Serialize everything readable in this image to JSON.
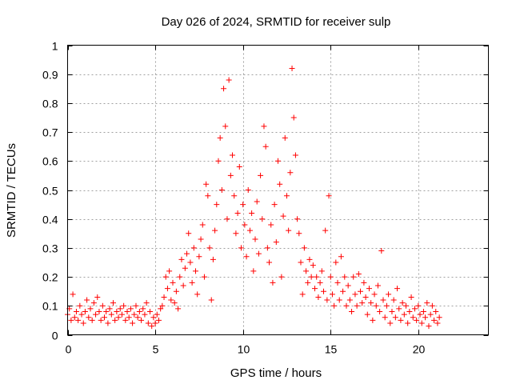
{
  "chart_data": {
    "type": "scatter",
    "title": "Day 026 of 2024, SRMTID for receiver sulp",
    "xlabel": "GPS time / hours",
    "ylabel": "SRMTID / TECUs",
    "xlim": [
      0,
      24
    ],
    "ylim": [
      0,
      1
    ],
    "xticks": [
      0,
      5,
      10,
      15,
      20
    ],
    "xtick_labels": [
      "0",
      "5",
      "10",
      "15",
      "20"
    ],
    "yticks": [
      0,
      0.1,
      0.2,
      0.3,
      0.4,
      0.5,
      0.6,
      0.7,
      0.8,
      0.9,
      1
    ],
    "ytick_labels": [
      "0",
      "0.1",
      "0.2",
      "0.3",
      "0.4",
      "0.5",
      "0.6",
      "0.7",
      "0.8",
      "0.9",
      "1"
    ],
    "grid": true,
    "marker": "+",
    "color": "#ff0000",
    "series": [
      {
        "name": "SRMTID",
        "points": [
          [
            0.0,
            0.07
          ],
          [
            0.1,
            0.09
          ],
          [
            0.2,
            0.05
          ],
          [
            0.3,
            0.14
          ],
          [
            0.4,
            0.06
          ],
          [
            0.5,
            0.08
          ],
          [
            0.6,
            0.05
          ],
          [
            0.7,
            0.1
          ],
          [
            0.8,
            0.07
          ],
          [
            0.9,
            0.04
          ],
          [
            1.0,
            0.08
          ],
          [
            1.1,
            0.12
          ],
          [
            1.2,
            0.06
          ],
          [
            1.3,
            0.09
          ],
          [
            1.4,
            0.05
          ],
          [
            1.5,
            0.11
          ],
          [
            1.6,
            0.07
          ],
          [
            1.7,
            0.13
          ],
          [
            1.8,
            0.08
          ],
          [
            1.9,
            0.05
          ],
          [
            2.0,
            0.1
          ],
          [
            2.1,
            0.06
          ],
          [
            2.2,
            0.08
          ],
          [
            2.3,
            0.04
          ],
          [
            2.4,
            0.09
          ],
          [
            2.5,
            0.07
          ],
          [
            2.6,
            0.11
          ],
          [
            2.7,
            0.05
          ],
          [
            2.8,
            0.08
          ],
          [
            2.9,
            0.06
          ],
          [
            3.0,
            0.09
          ],
          [
            3.1,
            0.07
          ],
          [
            3.2,
            0.1
          ],
          [
            3.3,
            0.05
          ],
          [
            3.4,
            0.08
          ],
          [
            3.5,
            0.06
          ],
          [
            3.6,
            0.09
          ],
          [
            3.7,
            0.04
          ],
          [
            3.8,
            0.07
          ],
          [
            3.9,
            0.1
          ],
          [
            4.0,
            0.06
          ],
          [
            4.1,
            0.08
          ],
          [
            4.2,
            0.05
          ],
          [
            4.3,
            0.09
          ],
          [
            4.4,
            0.07
          ],
          [
            4.5,
            0.11
          ],
          [
            4.6,
            0.04
          ],
          [
            4.7,
            0.08
          ],
          [
            4.8,
            0.03
          ],
          [
            4.9,
            0.06
          ],
          [
            5.0,
            0.04
          ],
          [
            5.1,
            0.07
          ],
          [
            5.2,
            0.05
          ],
          [
            5.3,
            0.09
          ],
          [
            5.4,
            0.1
          ],
          [
            5.5,
            0.13
          ],
          [
            5.6,
            0.2
          ],
          [
            5.7,
            0.16
          ],
          [
            5.8,
            0.22
          ],
          [
            5.9,
            0.12
          ],
          [
            6.0,
            0.18
          ],
          [
            6.1,
            0.11
          ],
          [
            6.2,
            0.15
          ],
          [
            6.3,
            0.09
          ],
          [
            6.4,
            0.2
          ],
          [
            6.5,
            0.26
          ],
          [
            6.6,
            0.17
          ],
          [
            6.7,
            0.23
          ],
          [
            6.8,
            0.28
          ],
          [
            6.9,
            0.35
          ],
          [
            7.0,
            0.25
          ],
          [
            7.1,
            0.18
          ],
          [
            7.2,
            0.3
          ],
          [
            7.3,
            0.22
          ],
          [
            7.4,
            0.14
          ],
          [
            7.5,
            0.27
          ],
          [
            7.6,
            0.33
          ],
          [
            7.7,
            0.38
          ],
          [
            7.8,
            0.2
          ],
          [
            7.9,
            0.52
          ],
          [
            8.0,
            0.48
          ],
          [
            8.1,
            0.3
          ],
          [
            8.2,
            0.12
          ],
          [
            8.3,
            0.26
          ],
          [
            8.4,
            0.36
          ],
          [
            8.5,
            0.45
          ],
          [
            8.6,
            0.6
          ],
          [
            8.7,
            0.68
          ],
          [
            8.8,
            0.5
          ],
          [
            8.9,
            0.85
          ],
          [
            9.0,
            0.72
          ],
          [
            9.1,
            0.4
          ],
          [
            9.2,
            0.88
          ],
          [
            9.3,
            0.55
          ],
          [
            9.4,
            0.62
          ],
          [
            9.5,
            0.48
          ],
          [
            9.6,
            0.35
          ],
          [
            9.7,
            0.42
          ],
          [
            9.8,
            0.58
          ],
          [
            9.9,
            0.3
          ],
          [
            10.0,
            0.45
          ],
          [
            10.1,
            0.38
          ],
          [
            10.2,
            0.27
          ],
          [
            10.3,
            0.5
          ],
          [
            10.4,
            0.36
          ],
          [
            10.5,
            0.42
          ],
          [
            10.6,
            0.22
          ],
          [
            10.7,
            0.33
          ],
          [
            10.8,
            0.46
          ],
          [
            10.9,
            0.28
          ],
          [
            11.0,
            0.55
          ],
          [
            11.1,
            0.4
          ],
          [
            11.2,
            0.72
          ],
          [
            11.3,
            0.65
          ],
          [
            11.4,
            0.3
          ],
          [
            11.5,
            0.25
          ],
          [
            11.6,
            0.38
          ],
          [
            11.7,
            0.18
          ],
          [
            11.8,
            0.45
          ],
          [
            11.9,
            0.32
          ],
          [
            12.0,
            0.6
          ],
          [
            12.1,
            0.52
          ],
          [
            12.2,
            0.2
          ],
          [
            12.3,
            0.41
          ],
          [
            12.4,
            0.68
          ],
          [
            12.5,
            0.48
          ],
          [
            12.6,
            0.36
          ],
          [
            12.7,
            0.56
          ],
          [
            12.8,
            0.92
          ],
          [
            12.9,
            0.75
          ],
          [
            13.0,
            0.62
          ],
          [
            13.1,
            0.4
          ],
          [
            13.2,
            0.35
          ],
          [
            13.3,
            0.25
          ],
          [
            13.4,
            0.14
          ],
          [
            13.5,
            0.3
          ],
          [
            13.6,
            0.22
          ],
          [
            13.7,
            0.18
          ],
          [
            13.8,
            0.26
          ],
          [
            13.9,
            0.2
          ],
          [
            14.0,
            0.24
          ],
          [
            14.1,
            0.16
          ],
          [
            14.2,
            0.2
          ],
          [
            14.3,
            0.13
          ],
          [
            14.4,
            0.18
          ],
          [
            14.5,
            0.22
          ],
          [
            14.6,
            0.15
          ],
          [
            14.7,
            0.36
          ],
          [
            14.8,
            0.12
          ],
          [
            14.9,
            0.48
          ],
          [
            15.0,
            0.2
          ],
          [
            15.1,
            0.14
          ],
          [
            15.2,
            0.1
          ],
          [
            15.3,
            0.25
          ],
          [
            15.4,
            0.18
          ],
          [
            15.5,
            0.12
          ],
          [
            15.6,
            0.27
          ],
          [
            15.7,
            0.15
          ],
          [
            15.8,
            0.2
          ],
          [
            15.9,
            0.1
          ],
          [
            16.0,
            0.17
          ],
          [
            16.1,
            0.12
          ],
          [
            16.2,
            0.08
          ],
          [
            16.3,
            0.2
          ],
          [
            16.4,
            0.14
          ],
          [
            16.5,
            0.1
          ],
          [
            16.6,
            0.21
          ],
          [
            16.7,
            0.15
          ],
          [
            16.8,
            0.11
          ],
          [
            16.9,
            0.18
          ],
          [
            17.0,
            0.13
          ],
          [
            17.1,
            0.07
          ],
          [
            17.2,
            0.16
          ],
          [
            17.3,
            0.11
          ],
          [
            17.4,
            0.05
          ],
          [
            17.5,
            0.14
          ],
          [
            17.6,
            0.1
          ],
          [
            17.7,
            0.17
          ],
          [
            17.8,
            0.08
          ],
          [
            17.9,
            0.29
          ],
          [
            18.0,
            0.12
          ],
          [
            18.1,
            0.06
          ],
          [
            18.2,
            0.1
          ],
          [
            18.3,
            0.14
          ],
          [
            18.4,
            0.04
          ],
          [
            18.5,
            0.08
          ],
          [
            18.6,
            0.12
          ],
          [
            18.7,
            0.06
          ],
          [
            18.8,
            0.16
          ],
          [
            18.9,
            0.09
          ],
          [
            19.0,
            0.05
          ],
          [
            19.1,
            0.11
          ],
          [
            19.2,
            0.07
          ],
          [
            19.3,
            0.1
          ],
          [
            19.4,
            0.04
          ],
          [
            19.5,
            0.08
          ],
          [
            19.6,
            0.13
          ],
          [
            19.7,
            0.06
          ],
          [
            19.8,
            0.09
          ],
          [
            19.9,
            0.05
          ],
          [
            20.0,
            0.1
          ],
          [
            20.1,
            0.07
          ],
          [
            20.2,
            0.04
          ],
          [
            20.3,
            0.08
          ],
          [
            20.4,
            0.06
          ],
          [
            20.5,
            0.11
          ],
          [
            20.6,
            0.03
          ],
          [
            20.7,
            0.07
          ],
          [
            20.8,
            0.1
          ],
          [
            20.9,
            0.05
          ],
          [
            21.0,
            0.08
          ],
          [
            21.1,
            0.04
          ],
          [
            21.2,
            0.06
          ]
        ]
      }
    ]
  }
}
